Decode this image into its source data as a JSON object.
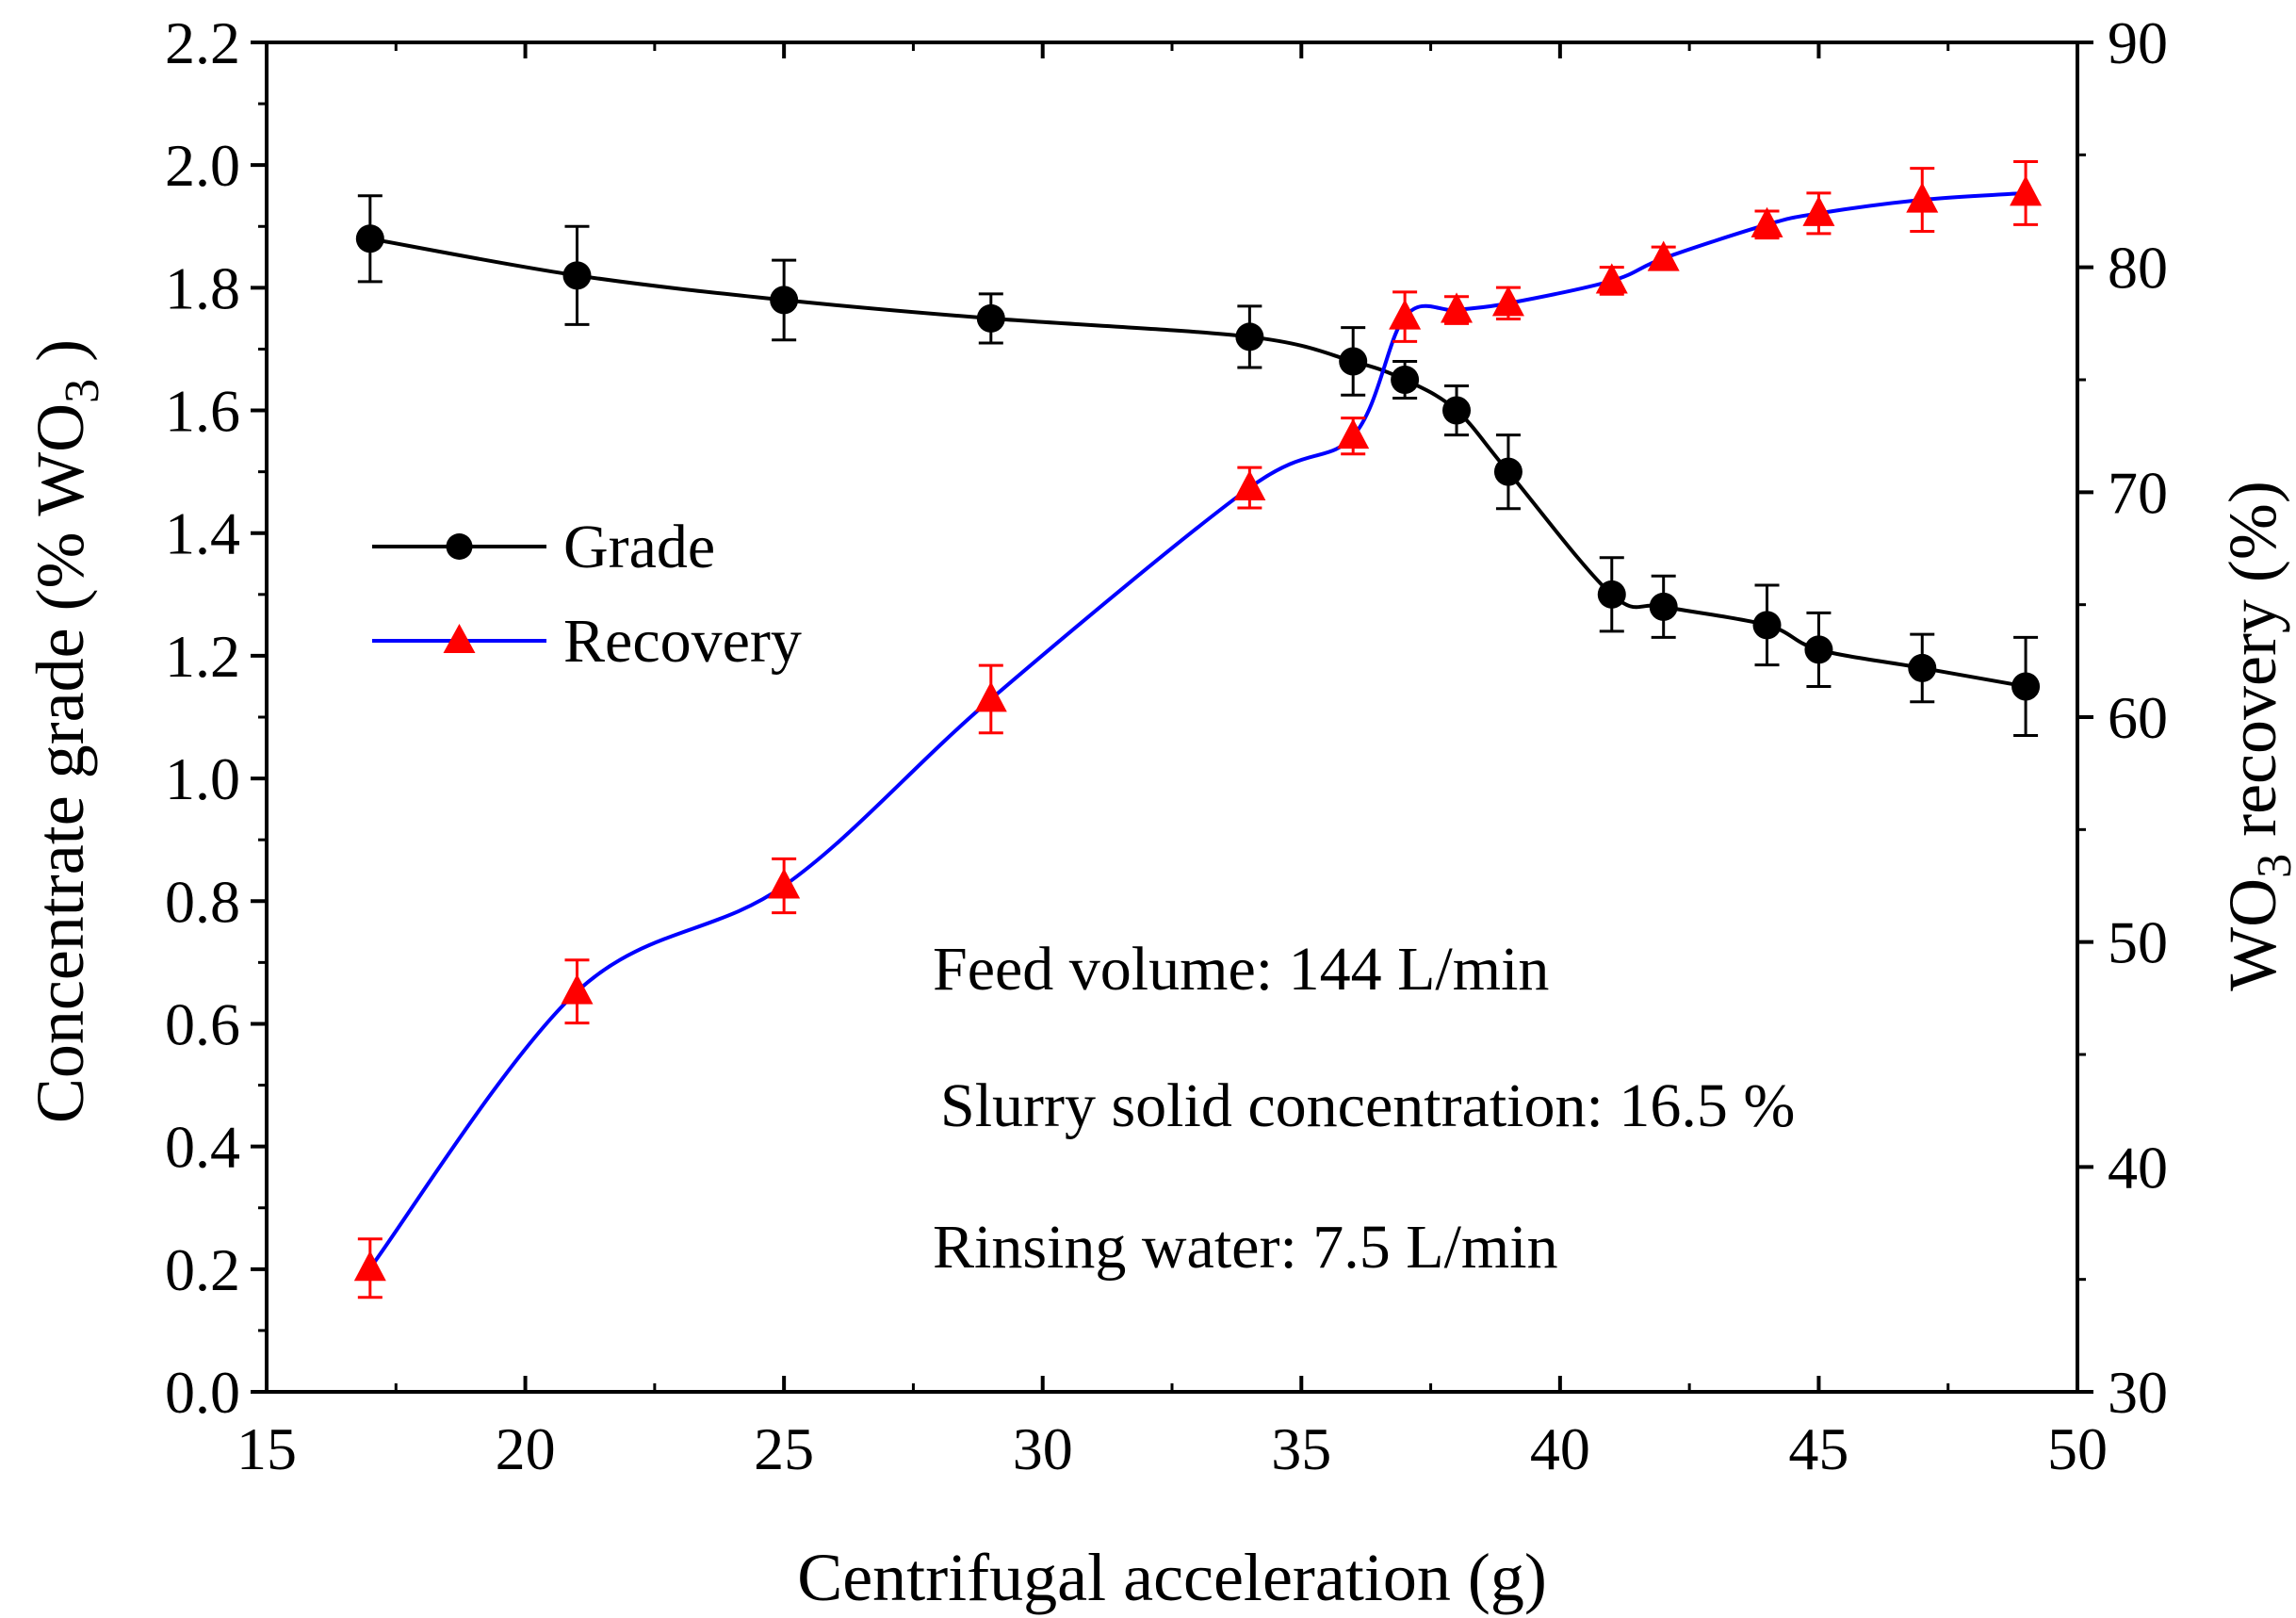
{
  "chart_data": {
    "type": "line",
    "xlabel": "Centrifugal acceleration (g)",
    "ylabel": "Concentrate grade (%  WO3 )",
    "ylabel_parts": {
      "pre": "Concentrate grade (%  WO",
      "sub": "3",
      "post": " )"
    },
    "y2label": "WO3 recovery (%)",
    "y2label_parts": {
      "pre": "WO",
      "sub": "3",
      "post": " recovery (%)"
    },
    "xlim": [
      15,
      50
    ],
    "ylim": [
      0.0,
      2.2
    ],
    "y2lim": [
      30,
      90
    ],
    "x_ticks": [
      "15",
      "20",
      "25",
      "30",
      "35",
      "40",
      "45",
      "50"
    ],
    "y_ticks": [
      "0.0",
      "0.2",
      "0.4",
      "0.6",
      "0.8",
      "1.0",
      "1.2",
      "1.4",
      "1.6",
      "1.8",
      "2.0",
      "2.2"
    ],
    "y2_ticks": [
      "30",
      "40",
      "50",
      "60",
      "70",
      "80",
      "90"
    ],
    "series": [
      {
        "name": "Grade",
        "axis": "left",
        "marker": "circle",
        "color": "#000000",
        "x": [
          17,
          21,
          25,
          29,
          34,
          36,
          37,
          38,
          39,
          41,
          42,
          44,
          45,
          47,
          49
        ],
        "values": [
          1.88,
          1.82,
          1.78,
          1.75,
          1.72,
          1.68,
          1.65,
          1.6,
          1.5,
          1.3,
          1.28,
          1.25,
          1.21,
          1.18,
          1.15
        ],
        "errors": [
          0.07,
          0.08,
          0.065,
          0.04,
          0.05,
          0.055,
          0.03,
          0.04,
          0.06,
          0.06,
          0.05,
          0.065,
          0.06,
          0.055,
          0.08
        ]
      },
      {
        "name": "Recovery",
        "axis": "right",
        "marker": "triangle",
        "color": "#0000ff",
        "marker_color": "#ff0000",
        "x": [
          17,
          21,
          25,
          29,
          34,
          36,
          37,
          38,
          39,
          41,
          42,
          44,
          45,
          47,
          49
        ],
        "values": [
          35.5,
          47.8,
          52.5,
          60.8,
          70.2,
          72.5,
          77.8,
          78.1,
          78.4,
          79.4,
          80.4,
          81.9,
          82.4,
          83.0,
          83.3
        ],
        "errors": [
          1.3,
          1.4,
          1.2,
          1.5,
          0.9,
          0.8,
          1.1,
          0.6,
          0.7,
          0.6,
          0.5,
          0.6,
          0.9,
          1.4,
          1.4
        ]
      }
    ],
    "legend": {
      "position": "middle-left",
      "entries": [
        "Grade",
        "Recovery"
      ]
    },
    "annotations": [
      "Feed volume: 144 L/min",
      "Slurry solid concentration: 16.5 %",
      "Rinsing water: 7.5 L/min"
    ],
    "grid": false
  }
}
